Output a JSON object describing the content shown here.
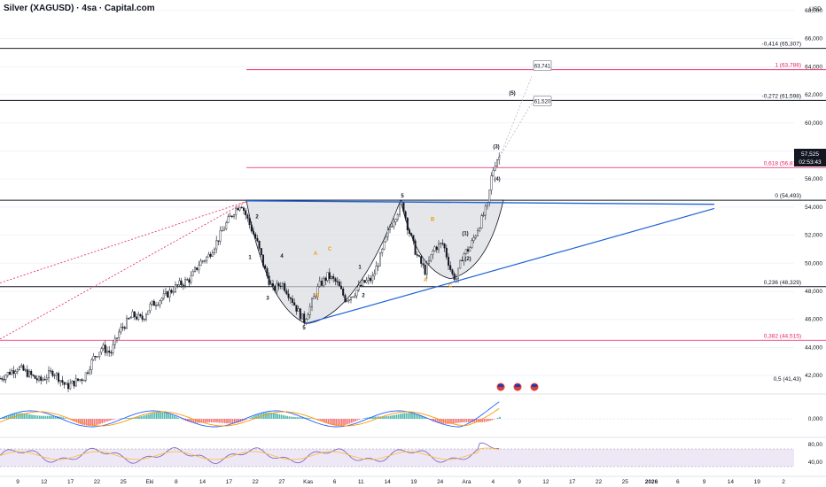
{
  "header": {
    "title": "Silver (XAGUSD) · 4sa · Capital.com"
  },
  "price_axis": {
    "currency": "USD",
    "labels": [
      "68,000",
      "66,000",
      "64,000",
      "62,000",
      "60,000",
      "58,000",
      "56,000",
      "54,000",
      "52,000",
      "50,000",
      "48,000",
      "46,000",
      "44,000",
      "42,000"
    ],
    "current_price": "57,525",
    "countdown": "02:53:43"
  },
  "time_axis": {
    "labels": [
      "9",
      "12",
      "17",
      "22",
      "25",
      "Eki",
      "8",
      "14",
      "17",
      "22",
      "27",
      "Kas",
      "6",
      "11",
      "14",
      "19",
      "24",
      "Ara",
      "4",
      "9",
      "12",
      "17",
      "22",
      "25",
      "2026",
      "6",
      "9",
      "14",
      "19",
      "2"
    ]
  },
  "fib_labels": [
    {
      "text": "-0,414 (65,307)",
      "color": "#131722"
    },
    {
      "text": "1 (63,788)",
      "color": "#e91e63"
    },
    {
      "text": "-0,272 (61,598)",
      "color": "#131722"
    },
    {
      "text": "0,618 (56,815)",
      "color": "#e91e63"
    },
    {
      "text": "0 (54,493)",
      "color": "#131722"
    },
    {
      "text": "0,236 (48,329)",
      "color": "#131722"
    },
    {
      "text": "0,382 (44,515)",
      "color": "#e91e63"
    },
    {
      "text": "0,5 (41,43)",
      "color": "#131722"
    }
  ],
  "callouts": [
    {
      "text": "63,741"
    },
    {
      "text": "61,520"
    }
  ],
  "wave_labels": [
    {
      "text": "1",
      "color": "#131722"
    },
    {
      "text": "2",
      "color": "#131722"
    },
    {
      "text": "3",
      "color": "#131722"
    },
    {
      "text": "4",
      "color": "#131722"
    },
    {
      "text": "5",
      "color": "#131722"
    },
    {
      "text": "A",
      "color": "#f39c12"
    },
    {
      "text": "B",
      "color": "#f39c12"
    },
    {
      "text": "C",
      "color": "#f39c12"
    },
    {
      "text": "1",
      "color": "#131722"
    },
    {
      "text": "2",
      "color": "#131722"
    },
    {
      "text": "5",
      "color": "#131722"
    },
    {
      "text": "B",
      "color": "#f39c12"
    },
    {
      "text": "A",
      "color": "#f39c12"
    },
    {
      "text": "C",
      "color": "#f39c12"
    },
    {
      "text": "(1)",
      "color": "#131722"
    },
    {
      "text": "(2)",
      "color": "#131722"
    },
    {
      "text": "(3)",
      "color": "#131722"
    },
    {
      "text": "(4)",
      "color": "#131722"
    },
    {
      "text": "(5)",
      "color": "#131722"
    }
  ],
  "indicators": {
    "macd_label": "0,000",
    "rsi_labels": [
      "80,00",
      "40,00"
    ]
  },
  "colors": {
    "up": "#26a69a",
    "down": "#ef5350",
    "trend": "#1e63d6",
    "fib_black": "#131722",
    "fib_red": "#e91e63",
    "rsi_band": "#ede7f6",
    "macd_line": "#2962ff",
    "signal_line": "#ff9800"
  },
  "chart_data": {
    "type": "candlestick",
    "title": "Silver (XAGUSD) · 4sa · Capital.com",
    "ylim": [
      41.0,
      68.5
    ],
    "y_unit": "USD",
    "price_path": [
      [
        0,
        41.8
      ],
      [
        20,
        42.6
      ],
      [
        45,
        41.6
      ],
      [
        60,
        42.3
      ],
      [
        75,
        41.2
      ],
      [
        95,
        41.9
      ],
      [
        105,
        43.2
      ],
      [
        115,
        44.0
      ],
      [
        125,
        43.6
      ],
      [
        135,
        45.2
      ],
      [
        150,
        46.3
      ],
      [
        160,
        46.0
      ],
      [
        170,
        47.0
      ],
      [
        185,
        47.6
      ],
      [
        200,
        48.4
      ],
      [
        215,
        48.9
      ],
      [
        225,
        50.0
      ],
      [
        235,
        50.5
      ],
      [
        245,
        51.6
      ],
      [
        255,
        52.8
      ],
      [
        265,
        53.8
      ],
      [
        272,
        54.3
      ],
      [
        280,
        53.0
      ],
      [
        290,
        51.5
      ],
      [
        300,
        49.3
      ],
      [
        308,
        48.1
      ],
      [
        318,
        48.6
      ],
      [
        328,
        47.6
      ],
      [
        336,
        46.6
      ],
      [
        343,
        45.9
      ],
      [
        350,
        46.9
      ],
      [
        360,
        48.4
      ],
      [
        370,
        49.1
      ],
      [
        380,
        48.6
      ],
      [
        390,
        47.4
      ],
      [
        400,
        47.9
      ],
      [
        410,
        48.6
      ],
      [
        420,
        48.9
      ],
      [
        430,
        50.6
      ],
      [
        440,
        52.6
      ],
      [
        448,
        53.6
      ],
      [
        454,
        54.3
      ],
      [
        460,
        52.6
      ],
      [
        470,
        50.6
      ],
      [
        480,
        49.4
      ],
      [
        490,
        51.1
      ],
      [
        500,
        51.4
      ],
      [
        510,
        49.2
      ],
      [
        515,
        48.9
      ],
      [
        522,
        50.6
      ],
      [
        530,
        51.1
      ],
      [
        540,
        52.6
      ],
      [
        550,
        54.1
      ],
      [
        555,
        56.4
      ],
      [
        560,
        57.4
      ],
      [
        564,
        57.6
      ]
    ],
    "levels": {
      "fib_-0.414": 65.307,
      "fib_1": 63.788,
      "fib_-0.272": 61.598,
      "fib_0.618": 56.815,
      "fib_0": 54.493,
      "fib_0.236": 48.329,
      "fib_0.382": 44.515,
      "fib_0.5": 41.43
    },
    "target_callouts": [
      63.741,
      61.52
    ],
    "wave_points": [
      [
        282,
        50.3
      ],
      [
        290,
        53.2
      ],
      [
        302,
        47.4
      ],
      [
        318,
        50.4
      ],
      [
        343,
        45.3
      ],
      [
        356,
        50.6
      ],
      [
        358,
        47.6
      ],
      [
        372,
        50.9
      ],
      [
        406,
        49.6
      ],
      [
        410,
        47.6
      ],
      [
        454,
        54.7
      ],
      [
        488,
        53.0
      ],
      [
        480,
        48.7
      ],
      [
        508,
        48.3
      ],
      [
        525,
        52.0
      ],
      [
        528,
        50.2
      ],
      [
        560,
        58.2
      ],
      [
        561,
        55.9
      ],
      [
        578,
        62.0
      ]
    ],
    "macd_ylim": [
      -1.5,
      1.5
    ],
    "rsi_ylim": [
      20,
      90
    ],
    "rsi_band": [
      30,
      70
    ]
  }
}
